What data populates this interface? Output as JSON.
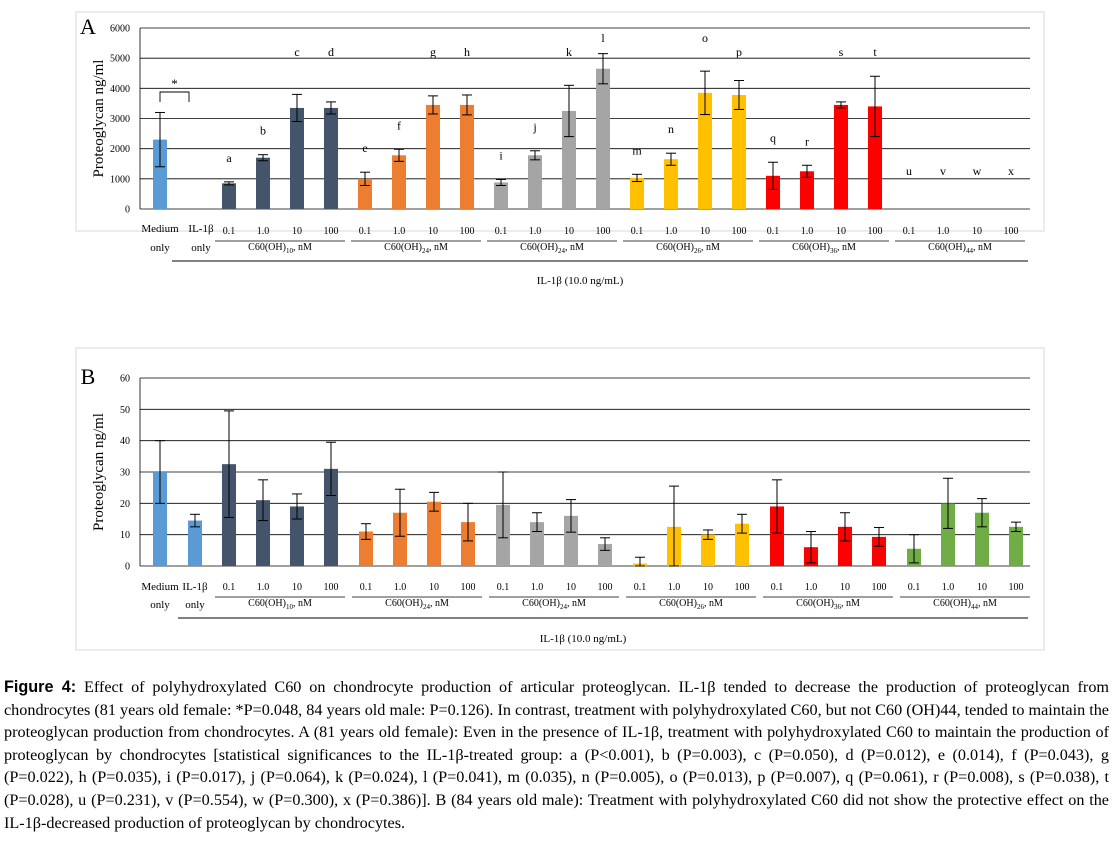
{
  "chart_data": [
    {
      "panel_label": "A",
      "type": "bar",
      "ylabel": "Proteoglycan  ng/ml",
      "ylim": [
        0,
        6000
      ],
      "yticks": [
        0,
        1000,
        2000,
        3000,
        4000,
        5000,
        6000
      ],
      "grid": true,
      "control_groups": [
        {
          "label_lines": [
            "Medium",
            "only"
          ],
          "value": 2300,
          "err": 900,
          "color": "#5b9bd5"
        },
        {
          "label_lines": [
            "IL-1β",
            "only"
          ],
          "value": 0,
          "err": 0,
          "color": "#5b9bd5"
        }
      ],
      "treatment_groups": [
        {
          "label": "C60(OH)10, nM",
          "base": "C60(OH)",
          "sub": "10",
          "suffix": ", nM",
          "color": "#44546a",
          "doses": [
            "0.1",
            "1.0",
            "10",
            "100"
          ],
          "values": [
            850,
            1700,
            3350,
            3350
          ],
          "errors": [
            50,
            100,
            450,
            200
          ],
          "letters": [
            "a",
            "b",
            "c",
            "d"
          ]
        },
        {
          "label": "C60(OH)24, nM",
          "base": "C60(OH)",
          "sub": "24",
          "suffix": ", nM",
          "color": "#ed7d31",
          "doses": [
            "0.1",
            "1.0",
            "10",
            "100"
          ],
          "values": [
            1000,
            1780,
            3450,
            3450
          ],
          "errors": [
            220,
            200,
            300,
            330
          ],
          "letters": [
            "e",
            "f",
            "g",
            "h"
          ]
        },
        {
          "label": "C60(OH)24, nM",
          "base": "C60(OH)",
          "sub": "24",
          "suffix": ", nM",
          "color": "#a5a5a5",
          "doses": [
            "0.1",
            "1.0",
            "10",
            "100"
          ],
          "values": [
            880,
            1780,
            3250,
            4650
          ],
          "errors": [
            100,
            150,
            850,
            500
          ],
          "letters": [
            "i",
            "j",
            "k",
            "l"
          ]
        },
        {
          "label": "C60(OH)26, nM",
          "base": "C60(OH)",
          "sub": "26",
          "suffix": ", nM",
          "color": "#ffc000",
          "doses": [
            "0.1",
            "1.0",
            "10",
            "100"
          ],
          "values": [
            1030,
            1650,
            3850,
            3780
          ],
          "errors": [
            120,
            200,
            720,
            480
          ],
          "letters": [
            "m",
            "n",
            "o",
            "p"
          ]
        },
        {
          "label": "C60(OH)36, nM",
          "base": "C60(OH)",
          "sub": "36",
          "suffix": ", nM",
          "color": "#ff0000",
          "doses": [
            "0.1",
            "1.0",
            "10",
            "100"
          ],
          "values": [
            1100,
            1250,
            3450,
            3400
          ],
          "errors": [
            450,
            200,
            100,
            1000
          ],
          "letters": [
            "q",
            "r",
            "s",
            "t"
          ]
        },
        {
          "label": "C60(OH)44, nM",
          "base": "C60(OH)",
          "sub": "44",
          "suffix": ", nM",
          "color": "#70ad47",
          "doses": [
            "0.1",
            "1.0",
            "10",
            "100"
          ],
          "values": [
            0,
            0,
            0,
            0
          ],
          "errors": [
            0,
            0,
            0,
            0
          ],
          "letters": [
            "u",
            "v",
            "w",
            "x"
          ]
        }
      ],
      "significance_marker": "*",
      "bracket_text": "IL-1β  (10.0 ng/mL)"
    },
    {
      "panel_label": "B",
      "type": "bar",
      "ylabel": "Proteoglycan  ng/ml",
      "ylim": [
        0,
        60
      ],
      "yticks": [
        0,
        10,
        20,
        30,
        40,
        50,
        60
      ],
      "grid": true,
      "control_groups": [
        {
          "label_lines": [
            "Medium",
            "only"
          ],
          "value": 30,
          "err": 10,
          "color": "#5b9bd5"
        },
        {
          "label_lines": [
            "IL-1β",
            "only"
          ],
          "value": 14.5,
          "err": 2,
          "color": "#5b9bd5"
        }
      ],
      "treatment_groups": [
        {
          "label": "C60(OH)10, nM",
          "base": "C60(OH)",
          "sub": "10",
          "suffix": ", nM",
          "color": "#44546a",
          "doses": [
            "0.1",
            "1.0",
            "10",
            "100"
          ],
          "values": [
            32.5,
            21,
            19,
            31
          ],
          "errors": [
            17,
            6.5,
            4,
            8.5
          ]
        },
        {
          "label": "C60(OH)24, nM",
          "base": "C60(OH)",
          "sub": "24",
          "suffix": ", nM",
          "color": "#ed7d31",
          "doses": [
            "0.1",
            "1.0",
            "10",
            "100"
          ],
          "values": [
            11,
            17,
            20.5,
            14
          ],
          "errors": [
            2.5,
            7.5,
            3,
            6
          ]
        },
        {
          "label": "C60(OH)24, nM",
          "base": "C60(OH)",
          "sub": "24",
          "suffix": ", nM",
          "color": "#a5a5a5",
          "doses": [
            "0.1",
            "1.0",
            "10",
            "100"
          ],
          "values": [
            19.5,
            14,
            16,
            7
          ],
          "errors": [
            10.5,
            3,
            5.2,
            2
          ]
        },
        {
          "label": "C60(OH)26, nM",
          "base": "C60(OH)",
          "sub": "26",
          "suffix": ", nM",
          "color": "#ffc000",
          "doses": [
            "0.1",
            "1.0",
            "10",
            "100"
          ],
          "values": [
            0.8,
            12.5,
            10,
            13.5
          ],
          "errors": [
            2,
            13,
            1.5,
            3
          ]
        },
        {
          "label": "C60(OH)36, nM",
          "base": "C60(OH)",
          "sub": "36",
          "suffix": ", nM",
          "color": "#ff0000",
          "doses": [
            "0.1",
            "1.0",
            "10",
            "100"
          ],
          "values": [
            19,
            6,
            12.5,
            9.3
          ],
          "errors": [
            8.5,
            5,
            4.5,
            3
          ]
        },
        {
          "label": "C60(OH)44, nM",
          "base": "C60(OH)",
          "sub": "44",
          "suffix": ", nM",
          "color": "#70ad47",
          "doses": [
            "0.1",
            "1.0",
            "10",
            "100"
          ],
          "values": [
            5.5,
            20,
            17,
            12.5
          ],
          "errors": [
            4.5,
            8,
            4.5,
            1.5
          ]
        }
      ],
      "bracket_text": "IL-1β  (10.0 ng/mL)"
    }
  ],
  "caption": {
    "label": "Figure 4:",
    "text": " Effect of polyhydroxylated C60 on chondrocyte production of articular proteoglycan. IL-1β tended to decrease the production of proteoglycan from chondrocytes (81 years old female: *P=0.048, 84 years old male: P=0.126). In contrast, treatment with polyhydroxylated C60, but not C60 (OH)44, tended to maintain the proteoglycan production from chondrocytes. A (81 years old female): Even in the presence of IL-1β, treatment with polyhydroxylated C60 to maintain the production of proteoglycan by chondrocytes [statistical significances to the IL-1β-treated group: a (P<0.001), b (P=0.003), c (P=0.050), d (P=0.012), e (0.014), f (P=0.043), g (P=0.022), h (P=0.035), i (P=0.017), j (P=0.064), k (P=0.024), l (P=0.041), m (0.035), n (P=0.005), o (P=0.013), p (P=0.007), q (P=0.061), r (P=0.008), s (P=0.038), t (P=0.028), u (P=0.231), v (P=0.554), w (P=0.300), x (P=0.386)]. B (84 years old male): Treatment with polyhydroxylated C60 did not show the protective effect on the IL-1β-decreased production of proteoglycan by chondrocytes."
  }
}
